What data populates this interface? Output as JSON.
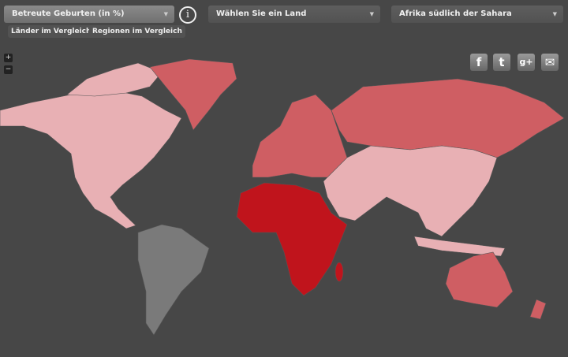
{
  "indicator_select": {
    "value": "Betreute Geburten (in %)"
  },
  "country_select": {
    "value": "Wählen Sie ein Land"
  },
  "region_select": {
    "value": "Afrika südlich der Sahara"
  },
  "buttons": {
    "countries": "Länder im Vergleich",
    "regions": "Regionen im Vergleich"
  },
  "zoom": {
    "in": "+",
    "out": "−"
  },
  "social": [
    {
      "icon": "facebook-icon",
      "glyph": "f"
    },
    {
      "icon": "twitter-icon",
      "glyph": "t"
    },
    {
      "icon": "google-plus-icon",
      "glyph": "g+"
    },
    {
      "icon": "email-icon",
      "glyph": "✉"
    }
  ],
  "colors": {
    "background": "#474747",
    "highlight": "#c0141c",
    "medium": "#cf5e63",
    "light": "#e8b0b4",
    "no_data": "#7a7a7a"
  }
}
